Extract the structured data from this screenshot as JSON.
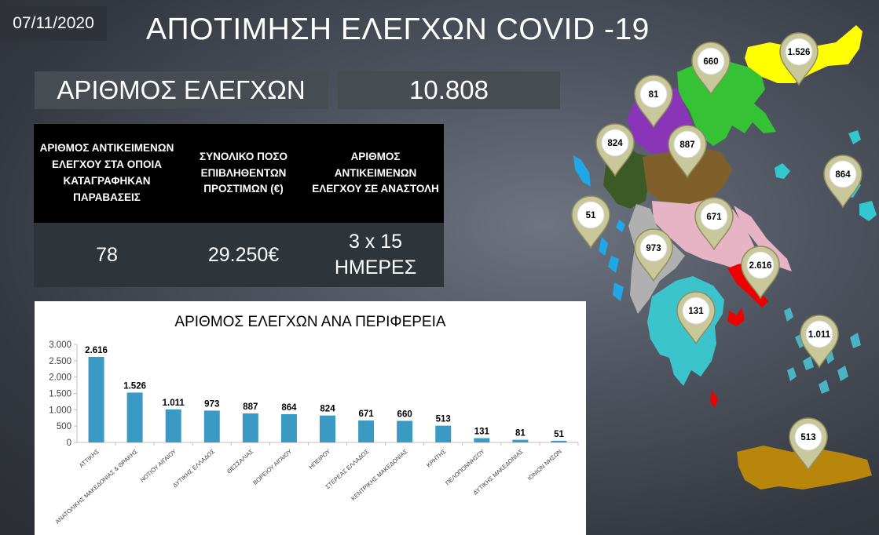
{
  "header": {
    "date": "07/11/2020",
    "title": "ΑΠΟΤΙΜΗΣΗ ΕΛΕΓΧΩΝ COVID -19"
  },
  "summary": {
    "label": "ΑΡΙΘΜΟΣ ΕΛΕΓΧΩΝ",
    "total": "10.808"
  },
  "stats_table": {
    "headers": [
      "ΑΡΙΘΜΟΣ ΑΝΤΙΚΕΙΜΕΝΩΝ ΕΛΕΓΧΟΥ ΣΤΑ ΟΠΟΙΑ ΚΑΤΑΓΡΑΦΗΚΑΝ ΠΑΡΑΒΑΣΕΙΣ",
      "ΣΥΝΟΛΙΚΟ ΠΟΣΟ ΕΠΙΒΛΗΘΕΝΤΩΝ ΠΡΟΣΤΙΜΩΝ (€)",
      "ΑΡΙΘΜΟΣ ΑΝΤΙΚΕΙΜΕΝΩΝ ΕΛΕΓΧΟΥ ΣΕ ΑΝΑΣΤΟΛΗ"
    ],
    "values": [
      "78",
      "29.250€",
      "3 x 15 ΗΜΕΡΕΣ"
    ]
  },
  "chart_data": {
    "type": "bar",
    "title": "ΑΡΙΘΜΟΣ ΕΛΕΓΧΩΝ ΑΝΑ ΠΕΡΙΦΕΡΕΙΑ",
    "categories": [
      "ΑΤΤΙΚΗΣ",
      "ΑΝΑΤΟΛΙΚΗΣ ΜΑΚΕΔΟΝΙΑΣ & ΘΡΑΚΗΣ",
      "ΝΟΤΙΟΥ ΑΙΓΑΙΟΥ",
      "ΔΥΤΙΚΗΣ ΕΛΛΑΔΟΣ",
      "ΘΕΣΣΑΛΙΑΣ",
      "ΒΟΡΕΙΟΥ ΑΙΓΑΙΟΥ",
      "ΗΠΕΙΡΟΥ",
      "ΣΤΕΡΕΑΣ ΕΛΛΑΔΟΣ",
      "ΚΕΝΤΡΙΚΗΣ ΜΑΚΕΔΟΝΙΑΣ",
      "ΚΡΗΤΗΣ",
      "ΠΕΛΟΠΟΝΝΗΣΟΥ",
      "ΔΥΤΙΚΗΣ ΜΑΚΕΔΟΝΙΑΣ",
      "ΙΟΝΙΩΝ ΝΗΣΩΝ"
    ],
    "values": [
      2616,
      1526,
      1011,
      973,
      887,
      864,
      824,
      671,
      660,
      513,
      131,
      81,
      51
    ],
    "value_labels": [
      "2.616",
      "1.526",
      "1.011",
      "973",
      "887",
      "864",
      "824",
      "671",
      "660",
      "513",
      "131",
      "81",
      "51"
    ],
    "ylim": [
      0,
      3000
    ],
    "yticks": [
      0,
      500,
      1000,
      1500,
      2000,
      2500,
      3000
    ],
    "ytick_labels": [
      "0",
      "500",
      "1.000",
      "1.500",
      "2.000",
      "2.500",
      "3.000"
    ],
    "bar_color": "#3a9ac4",
    "grid": false,
    "legend": "none"
  },
  "map": {
    "markers": [
      {
        "region": "ΚΕΝΤΡΙΚΗΣ ΜΑΚΕΔΟΝΙΑΣ",
        "label": "660",
        "color": "#35c235"
      },
      {
        "region": "ΑΝΑΤΟΛΙΚΗΣ ΜΑΚΕΔΟΝΙΑΣ & ΘΡΑΚΗΣ",
        "label": "1.526",
        "color": "#ffff00"
      },
      {
        "region": "ΔΥΤΙΚΗΣ ΜΑΚΕΔΟΝΙΑΣ",
        "label": "81",
        "color": "#8a35b8"
      },
      {
        "region": "ΗΠΕΙΡΟΥ",
        "label": "824",
        "color": "#3c5a26"
      },
      {
        "region": "ΘΕΣΣΑΛΙΑΣ",
        "label": "887",
        "color": "#80602a"
      },
      {
        "region": "ΒΟΡΕΙΟΥ ΑΙΓΑΙΟΥ",
        "label": "864",
        "color": "#33c8d0"
      },
      {
        "region": "ΙΟΝΙΩΝ ΝΗΣΩΝ",
        "label": "51",
        "color": "#1ea8e8"
      },
      {
        "region": "ΣΤΕΡΕΑΣ ΕΛΛΑΔΟΣ",
        "label": "671",
        "color": "#e6b4c4"
      },
      {
        "region": "ΔΥΤΙΚΗΣ ΕΛΛΑΔΟΣ",
        "label": "973",
        "color": "#b0b0b0"
      },
      {
        "region": "ΑΤΤΙΚΗΣ",
        "label": "2.616",
        "color": "#ee0000"
      },
      {
        "region": "ΠΕΛΟΠΟΝΝΗΣΟΥ",
        "label": "131",
        "color": "#3cc4cc"
      },
      {
        "region": "ΝΟΤΙΟΥ ΑΙΓΑΙΟΥ",
        "label": "1.011",
        "color": "#4ab4c4"
      },
      {
        "region": "ΚΡΗΤΗΣ",
        "label": "513",
        "color": "#b8860b"
      }
    ]
  }
}
